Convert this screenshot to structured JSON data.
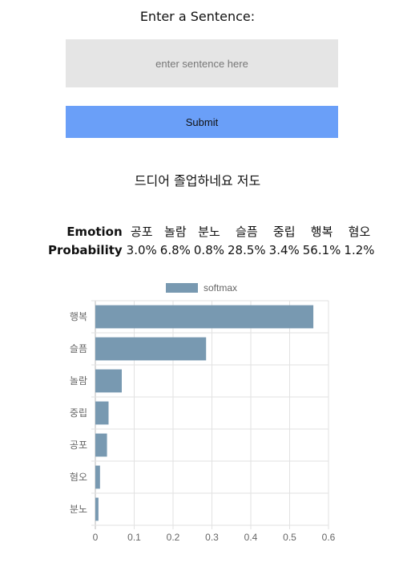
{
  "form": {
    "prompt": "Enter a Sentence:",
    "input_placeholder": "enter sentence here",
    "input_value": "",
    "submit_label": "Submit"
  },
  "result": {
    "sentence": "드디어 졸업하네요 저도",
    "emotion_header": "Emotion",
    "probability_header": "Probability",
    "emotions": [
      "공포",
      "놀람",
      "분노",
      "슬픔",
      "중립",
      "행복",
      "혐오"
    ],
    "probabilities": [
      "3.0%",
      "6.8%",
      "0.8%",
      "28.5%",
      "3.4%",
      "56.1%",
      "1.2%"
    ]
  },
  "colors": {
    "bar": "#7899b1",
    "submit": "#6a9ff8",
    "input_bg": "#e5e5e5"
  },
  "chart_data": {
    "type": "bar",
    "orientation": "horizontal",
    "legend": "top",
    "grid": true,
    "series": [
      {
        "name": "softmax",
        "categories": [
          "행복",
          "슬픔",
          "놀람",
          "중립",
          "공포",
          "혐오",
          "분노"
        ],
        "values": [
          0.561,
          0.285,
          0.068,
          0.034,
          0.03,
          0.012,
          0.008
        ]
      }
    ],
    "xlim": [
      0,
      0.6
    ],
    "xticks": [
      "0",
      "0.1",
      "0.2",
      "0.3",
      "0.4",
      "0.5",
      "0.6"
    ]
  }
}
